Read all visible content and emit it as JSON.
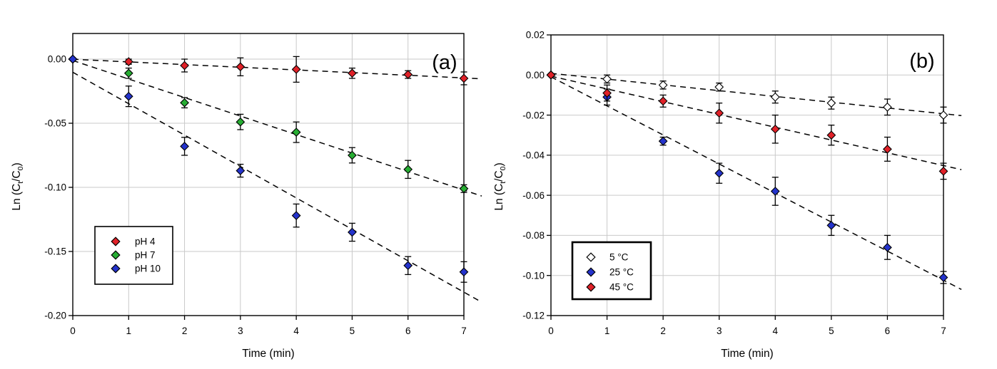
{
  "figure": {
    "background": "#ffffff",
    "panel_labels": [
      "(a)",
      "(b)"
    ]
  },
  "colors": {
    "red": "#e02128",
    "green": "#27ad33",
    "blue": "#2433cc",
    "open_fill": "#ffffff",
    "marker_outline": "#000000",
    "gridline": "#c9c9c9",
    "axis": "#000000",
    "fit_line": "#000000",
    "legend_bg": "#ffffff"
  },
  "chart_data": [
    {
      "type": "scatter",
      "panel_label": "(a)",
      "xlabel": "Time (min)",
      "ylabel": "Ln (Ct/C0)",
      "ylabel_parts": {
        "pre": "Ln (C",
        "sub1": "t",
        "mid": "/C",
        "sub2": "0",
        "post": ")"
      },
      "x": [
        0,
        1,
        2,
        3,
        4,
        5,
        6,
        7
      ],
      "x_tick_labels": [
        "0",
        "1",
        "2",
        "3",
        "4",
        "5",
        "6",
        "7"
      ],
      "xlim": [
        0,
        7
      ],
      "ylim": [
        0.02,
        -0.2
      ],
      "y_ticks": [
        0,
        -0.05,
        -0.1,
        -0.15,
        -0.2
      ],
      "y_tick_labels": [
        "0.00",
        "-0.05",
        "-0.10",
        "-0.15",
        "-0.20"
      ],
      "grid": true,
      "legend_position": "lower-left",
      "fit": "linear-dashed",
      "series": [
        {
          "name": "pH 4",
          "marker": "diamond",
          "color_key": "red",
          "values": [
            0.0,
            -0.002,
            -0.005,
            -0.006,
            -0.008,
            -0.011,
            -0.012,
            -0.015
          ],
          "errors": [
            0,
            0.002,
            0.005,
            0.007,
            0.01,
            0.004,
            0.003,
            0.005
          ]
        },
        {
          "name": "pH 7",
          "marker": "diamond",
          "color_key": "green",
          "values": [
            0.0,
            -0.011,
            -0.034,
            -0.049,
            -0.057,
            -0.075,
            -0.086,
            -0.101
          ],
          "errors": [
            0,
            0.004,
            0.004,
            0.006,
            0.008,
            0.006,
            0.007,
            0.003
          ]
        },
        {
          "name": "pH 10",
          "marker": "diamond",
          "color_key": "blue",
          "values": [
            0.0,
            -0.029,
            -0.068,
            -0.087,
            -0.122,
            -0.135,
            -0.161,
            -0.166
          ],
          "errors": [
            0,
            0.008,
            0.007,
            0.005,
            0.009,
            0.007,
            0.007,
            0.008
          ]
        }
      ]
    },
    {
      "type": "scatter",
      "panel_label": "(b)",
      "xlabel": "Time (min)",
      "ylabel": "Ln (Ct/C0)",
      "ylabel_parts": {
        "pre": "Ln (C",
        "sub1": "t",
        "mid": "/C",
        "sub2": "0",
        "post": ")"
      },
      "x": [
        0,
        1,
        2,
        3,
        4,
        5,
        6,
        7
      ],
      "x_tick_labels": [
        "0",
        "1",
        "2",
        "3",
        "4",
        "5",
        "6",
        "7"
      ],
      "xlim": [
        0,
        7
      ],
      "ylim": [
        0.02,
        -0.12
      ],
      "y_ticks": [
        0.02,
        0,
        -0.02,
        -0.04,
        -0.06,
        -0.08,
        -0.1,
        -0.12
      ],
      "y_tick_labels": [
        "0.02",
        "0.00",
        "-0.02",
        "-0.04",
        "-0.06",
        "-0.08",
        "-0.10",
        "-0.12"
      ],
      "grid": true,
      "legend_position": "lower-left",
      "fit": "linear-dashed",
      "series": [
        {
          "name": "5 °C",
          "marker": "diamond-open",
          "color_key": "open_fill",
          "values": [
            0.0,
            -0.002,
            -0.005,
            -0.006,
            -0.011,
            -0.014,
            -0.016,
            -0.02
          ],
          "errors": [
            0,
            0.002,
            0.002,
            0.002,
            0.003,
            0.003,
            0.004,
            0.004
          ]
        },
        {
          "name": "25 °C",
          "marker": "diamond",
          "color_key": "blue",
          "values": [
            0.0,
            -0.011,
            -0.033,
            -0.049,
            -0.058,
            -0.075,
            -0.086,
            -0.101
          ],
          "errors": [
            0,
            0.004,
            0.002,
            0.005,
            0.007,
            0.005,
            0.006,
            0.003
          ]
        },
        {
          "name": "45 °C",
          "marker": "diamond",
          "color_key": "red",
          "values": [
            0.0,
            -0.009,
            -0.013,
            -0.019,
            -0.027,
            -0.03,
            -0.037,
            -0.048
          ],
          "errors": [
            0,
            0.004,
            0.003,
            0.005,
            0.007,
            0.005,
            0.006,
            0.004
          ]
        }
      ]
    }
  ]
}
